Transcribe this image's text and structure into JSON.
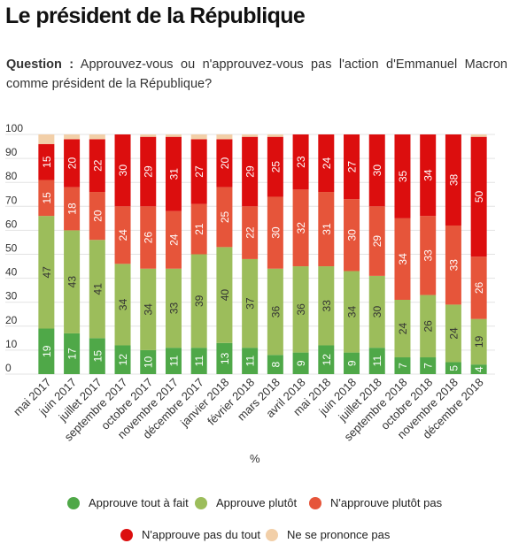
{
  "title": "Le président de la République",
  "question": {
    "label": "Question :",
    "text": "Approuvez-vous ou n'approuvez-vous pas l'action d'Emmanuel Macron comme président de la République?"
  },
  "chart_data": {
    "type": "bar",
    "stacked": true,
    "categories": [
      "mai 2017",
      "juin 2017",
      "juillet 2017",
      "septembre 2017",
      "octobre 2017",
      "novembre 2017",
      "décembre 2017",
      "janvier 2018",
      "février 2018",
      "mars 2018",
      "avril 2018",
      "mai 2018",
      "juin 2018",
      "juillet 2018",
      "septembre 2018",
      "octobre 2018",
      "novembre 2018",
      "décembre 2018"
    ],
    "series": [
      {
        "name": "Approuve tout à fait",
        "color": "#4fa848",
        "values": [
          19,
          17,
          15,
          12,
          10,
          11,
          11,
          13,
          11,
          8,
          9,
          12,
          9,
          11,
          7,
          7,
          5,
          4
        ]
      },
      {
        "name": "Approuve plutôt",
        "color": "#9cbd5b",
        "values": [
          47,
          43,
          41,
          34,
          34,
          33,
          39,
          40,
          37,
          36,
          36,
          33,
          34,
          30,
          24,
          26,
          24,
          19
        ]
      },
      {
        "name": "N'approuve plutôt pas",
        "color": "#e6553a",
        "values": [
          15,
          18,
          20,
          24,
          26,
          24,
          21,
          25,
          22,
          30,
          32,
          31,
          30,
          29,
          34,
          33,
          33,
          26
        ]
      },
      {
        "name": "N'approuve pas du tout",
        "color": "#dc0e0e",
        "values": [
          15,
          20,
          22,
          30,
          29,
          31,
          27,
          20,
          29,
          25,
          23,
          24,
          27,
          30,
          35,
          34,
          38,
          50
        ]
      },
      {
        "name": "Ne se prononce pas",
        "color": "#f2cfa8",
        "values": [
          4,
          2,
          2,
          0,
          1,
          1,
          2,
          2,
          1,
          1,
          0,
          0,
          0,
          0,
          0,
          0,
          0,
          1
        ]
      }
    ],
    "labels": [
      [
        "19",
        "17",
        "15",
        "12",
        "10",
        "11",
        "11",
        "13",
        "11",
        "8",
        "9",
        "12",
        "9",
        "11",
        "7",
        "7",
        "5",
        "4"
      ],
      [
        "47",
        "43",
        "41",
        "34",
        "34",
        "33",
        "39",
        "40",
        "37",
        "36",
        "36",
        "33",
        "34",
        "30",
        "24",
        "26",
        "24",
        "19"
      ],
      [
        "15",
        "18",
        "20",
        "24",
        "26",
        "24",
        "21",
        "25",
        "22",
        "30",
        "32",
        "31",
        "30",
        "29",
        "34",
        "33",
        "33",
        "26"
      ],
      [
        "15",
        "20",
        "22",
        "30",
        "29",
        "31",
        "27",
        "20",
        "29",
        "25",
        "23",
        "24",
        "27",
        "30",
        "35",
        "34",
        "38",
        "50"
      ],
      [
        "",
        "",
        "",
        "",
        "",
        "",
        "",
        "",
        "",
        "",
        "",
        "",
        "",
        "",
        "",
        "",
        "",
        ""
      ]
    ],
    "label_colors": [
      "#ffffff",
      "#333333",
      "#ffffff",
      "#ffffff",
      "#333333"
    ],
    "yticks": [
      "0",
      "10",
      "20",
      "30",
      "40",
      "50",
      "60",
      "70",
      "80",
      "90",
      "100"
    ],
    "ylim": [
      0,
      100
    ],
    "ylabel": "",
    "xlabel": "%",
    "legend_position": "bottom",
    "grid": true
  }
}
